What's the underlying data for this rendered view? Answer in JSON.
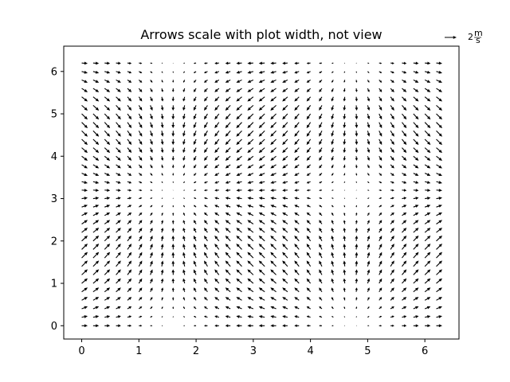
{
  "chart_data": {
    "type": "quiver",
    "title": "Arrows scale with plot width, not view",
    "xlabel": "",
    "ylabel": "",
    "xlim": [
      -0.314,
      6.597
    ],
    "ylim": [
      -0.314,
      6.597
    ],
    "xticks": [
      0,
      1,
      2,
      3,
      4,
      5,
      6
    ],
    "yticks": [
      0,
      1,
      2,
      3,
      4,
      5,
      6
    ],
    "grid": false,
    "field": {
      "description_formula": "U = cos(X), V = sin(Y)",
      "x_range": [
        0,
        6.2
      ],
      "y_range": [
        0,
        6.2
      ],
      "step": 0.2
    },
    "quiver_key": {
      "magnitude": 2,
      "label_main": "2",
      "label_unit_top": "m",
      "label_unit_bottom": "s",
      "placement": "top-right"
    },
    "arrow_color": "#000000"
  }
}
